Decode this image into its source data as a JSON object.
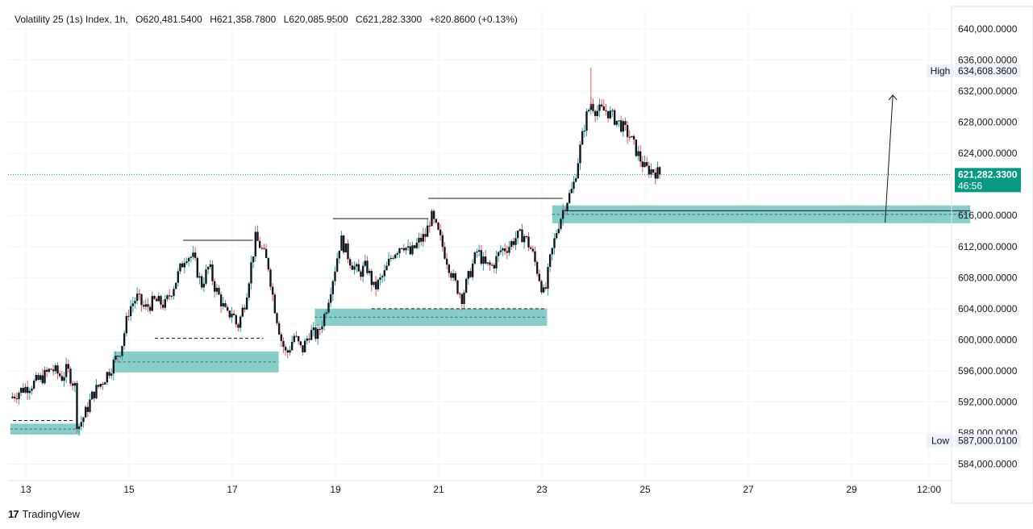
{
  "header": {
    "symbol": "Volatility 25 (1s) Index, 1h,",
    "open": "O620,481.5400",
    "high": "H621,358.7800",
    "low": "L620,085.9500",
    "close": "C621,282.3300",
    "change": "+820.8600 (+0.13%)"
  },
  "brand": {
    "name": "TradingView"
  },
  "price_badges": {
    "high_label": "High",
    "high_value": "634,608.3600",
    "low_label": "Low",
    "low_value": "587,000.0100",
    "last_value": "621,282.3300",
    "countdown": "46:56"
  },
  "colors": {
    "up": "#26a69a",
    "down": "#ef5350",
    "candle_body": "#131722",
    "zone": "#26a69a",
    "grid": "#f0f3fa",
    "last_price": "#089981"
  },
  "chart_data": {
    "type": "candlestick",
    "y_axis": {
      "range": [
        582000,
        642000
      ],
      "ticks": [
        584000,
        588000,
        592000,
        596000,
        600000,
        604000,
        608000,
        612000,
        616000,
        620000,
        624000,
        628000,
        632000,
        636000,
        640000
      ],
      "tick_labels": [
        "584,000.0000",
        "588,000.0000",
        "592,000.0000",
        "596,000.0000",
        "600,000.0000",
        "604,000.0000",
        "608,000.0000",
        "612,000.0000",
        "616,000.0000",
        "620,000.0000",
        "624,000.0000",
        "628,000.0000",
        "632,000.0000",
        "636,000.0000",
        "640,000.0000"
      ]
    },
    "x_axis": {
      "range": [
        12.7,
        31.4
      ],
      "ticks": [
        13,
        15,
        17,
        19,
        21,
        23,
        25,
        27,
        29,
        30.5
      ],
      "tick_labels": [
        "13",
        "15",
        "17",
        "19",
        "21",
        "23",
        "25",
        "27",
        "29",
        "12:00"
      ]
    },
    "grid": true,
    "last_price": 621282.33,
    "high": 634608.36,
    "low": 587000.01,
    "close_path": [
      [
        12.7,
        592500
      ],
      [
        12.9,
        593500
      ],
      [
        13.1,
        594200
      ],
      [
        13.3,
        595000
      ],
      [
        13.5,
        596300
      ],
      [
        13.7,
        595200
      ],
      [
        13.8,
        596200
      ],
      [
        13.95,
        594000
      ],
      [
        14.0,
        588500
      ],
      [
        14.15,
        590500
      ],
      [
        14.3,
        593000
      ],
      [
        14.5,
        594800
      ],
      [
        14.7,
        597000
      ],
      [
        14.85,
        599000
      ],
      [
        15.0,
        604000
      ],
      [
        15.15,
        605500
      ],
      [
        15.3,
        604000
      ],
      [
        15.5,
        605000
      ],
      [
        15.7,
        604500
      ],
      [
        15.9,
        607500
      ],
      [
        16.1,
        611000
      ],
      [
        16.25,
        610500
      ],
      [
        16.4,
        607000
      ],
      [
        16.55,
        609500
      ],
      [
        16.65,
        607000
      ],
      [
        16.75,
        605500
      ],
      [
        16.9,
        603000
      ],
      [
        17.0,
        603700
      ],
      [
        17.1,
        601500
      ],
      [
        17.25,
        605000
      ],
      [
        17.35,
        609000
      ],
      [
        17.45,
        613000
      ],
      [
        17.55,
        612000
      ],
      [
        17.7,
        609500
      ],
      [
        17.8,
        605000
      ],
      [
        17.95,
        600000
      ],
      [
        18.05,
        598000
      ],
      [
        18.2,
        600500
      ],
      [
        18.35,
        598500
      ],
      [
        18.5,
        601000
      ],
      [
        18.65,
        600500
      ],
      [
        18.8,
        603500
      ],
      [
        19.0,
        609500
      ],
      [
        19.1,
        613000
      ],
      [
        19.3,
        610000
      ],
      [
        19.45,
        608500
      ],
      [
        19.6,
        609500
      ],
      [
        19.75,
        606500
      ],
      [
        19.95,
        608500
      ],
      [
        20.1,
        611000
      ],
      [
        20.3,
        612500
      ],
      [
        20.45,
        611000
      ],
      [
        20.6,
        612500
      ],
      [
        20.75,
        613500
      ],
      [
        20.85,
        616000
      ],
      [
        21.0,
        613500
      ],
      [
        21.15,
        610500
      ],
      [
        21.3,
        607500
      ],
      [
        21.45,
        605500
      ],
      [
        21.6,
        608500
      ],
      [
        21.75,
        611500
      ],
      [
        21.9,
        609500
      ],
      [
        22.05,
        609500
      ],
      [
        22.2,
        611500
      ],
      [
        22.35,
        612000
      ],
      [
        22.5,
        613200
      ],
      [
        22.65,
        613500
      ],
      [
        22.8,
        611500
      ],
      [
        22.95,
        608000
      ],
      [
        23.05,
        605500
      ],
      [
        23.15,
        610000
      ],
      [
        23.3,
        614500
      ],
      [
        23.45,
        617500
      ],
      [
        23.6,
        619500
      ],
      [
        23.75,
        625000
      ],
      [
        23.85,
        628500
      ],
      [
        23.95,
        630500
      ],
      [
        24.05,
        629500
      ],
      [
        24.25,
        629500
      ],
      [
        24.4,
        628500
      ],
      [
        24.55,
        627500
      ],
      [
        24.7,
        626200
      ],
      [
        24.85,
        624000
      ],
      [
        25.0,
        622000
      ],
      [
        25.15,
        621800
      ],
      [
        25.3,
        621282
      ]
    ],
    "up_wicks": [
      [
        23.95,
        635000
      ]
    ]
  }
}
